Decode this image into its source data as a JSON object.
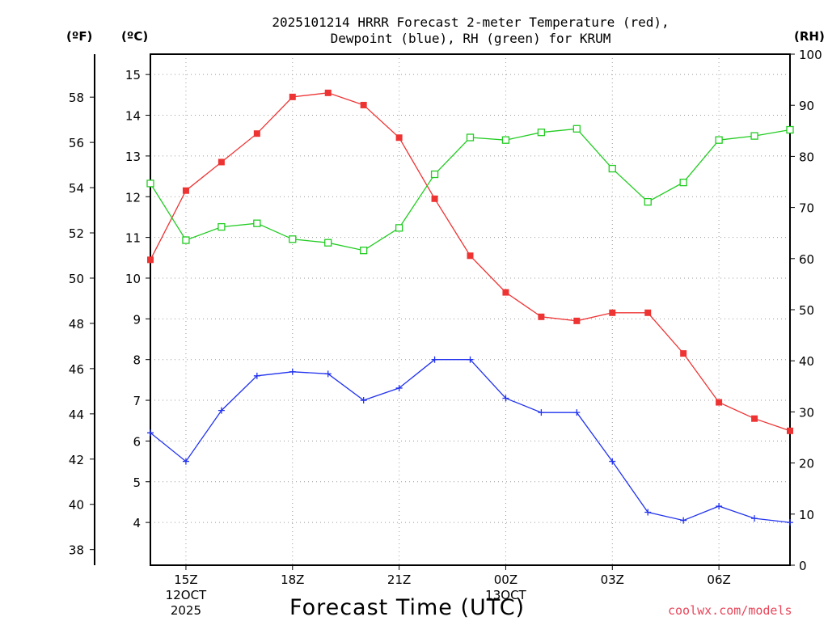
{
  "title": {
    "line1": "2025101214 HRRR Forecast 2-meter Temperature (red),",
    "line2": "Dewpoint (blue), RH (green) for KRUM"
  },
  "units": {
    "left_f": "(ºF)",
    "left_c": "(ºC)",
    "right_rh": "(RH)"
  },
  "xlabel": "Forecast Time (UTC)",
  "credit": "coolwx.com/models",
  "chart_data": {
    "type": "line",
    "x_hours": [
      14,
      15,
      16,
      17,
      18,
      19,
      20,
      21,
      22,
      23,
      24,
      25,
      26,
      27,
      28,
      29,
      30,
      31,
      32
    ],
    "xlim": [
      14,
      32
    ],
    "x_ticks": [
      {
        "hour": 15,
        "label": "15Z",
        "sub1": "12OCT",
        "sub2": "2025"
      },
      {
        "hour": 18,
        "label": "18Z"
      },
      {
        "hour": 21,
        "label": "21Z"
      },
      {
        "hour": 24,
        "label": "00Z",
        "sub1": "13OCT"
      },
      {
        "hour": 27,
        "label": "03Z"
      },
      {
        "hour": 30,
        "label": "06Z"
      }
    ],
    "axes": {
      "celsius": {
        "ylim": [
          2.95,
          15.5
        ],
        "ticks": [
          4,
          5,
          6,
          7,
          8,
          9,
          10,
          11,
          12,
          13,
          14,
          15
        ]
      },
      "fahrenheit": {
        "ticks": [
          38,
          40,
          42,
          44,
          46,
          48,
          50,
          52,
          54,
          56,
          58
        ]
      },
      "rh": {
        "ylim": [
          0,
          100
        ],
        "ticks": [
          0,
          10,
          20,
          30,
          40,
          50,
          60,
          70,
          80,
          90,
          100
        ]
      }
    },
    "series": [
      {
        "name": "Temperature",
        "unit": "C",
        "color": "#ee3333",
        "marker": "filled-square",
        "values": [
          10.45,
          12.15,
          12.85,
          13.55,
          14.45,
          14.55,
          14.25,
          13.45,
          11.95,
          10.55,
          9.65,
          9.05,
          8.95,
          9.15,
          9.15,
          8.15,
          6.95,
          6.55,
          6.25
        ]
      },
      {
        "name": "Dewpoint",
        "unit": "C",
        "color": "#2233ee",
        "marker": "plus",
        "values": [
          6.2,
          5.5,
          6.75,
          7.6,
          7.7,
          7.65,
          7.0,
          7.3,
          8.0,
          8.0,
          7.05,
          6.7,
          6.7,
          5.5,
          4.25,
          4.05,
          4.4,
          4.1,
          4.0
        ]
      },
      {
        "name": "RH",
        "unit": "%",
        "color": "#22cc22",
        "marker": "open-square",
        "values": [
          74.7,
          63.6,
          66.2,
          66.9,
          63.8,
          63.1,
          61.6,
          66.0,
          76.5,
          83.7,
          83.2,
          84.7,
          85.4,
          77.6,
          71.1,
          74.9,
          83.2,
          84.0,
          85.2
        ]
      }
    ]
  }
}
